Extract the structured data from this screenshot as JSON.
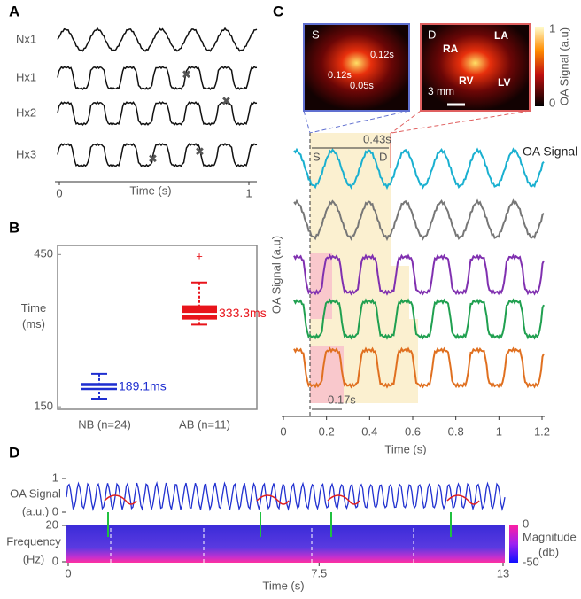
{
  "panels": [
    {
      "label": "A",
      "rows": [
        "Nx1",
        "Hx1",
        "Hx2",
        "Hx3"
      ],
      "xlabel": "Time (s)",
      "xlim": [
        0,
        1
      ],
      "xticks": [
        0,
        1
      ]
    },
    {
      "label": "B",
      "chart_data": {
        "type": "box",
        "ylabel": "Time (ms)",
        "categories": [
          "NB (n=24)",
          "AB (n=11)"
        ],
        "colors": [
          "#1f2fd0",
          "#e8141b"
        ],
        "ylim": [
          145,
          468
        ],
        "yticks": [
          150,
          450
        ],
        "min": [
          166,
          312
        ],
        "q1": [
          183,
          322
        ],
        "median": [
          189.1,
          333.3
        ],
        "q3": [
          197,
          350
        ],
        "max": [
          215,
          395
        ],
        "outliers": [
          [],
          [
            445
          ]
        ],
        "value_labels": [
          "189.1ms",
          "333.3ms"
        ]
      }
    },
    {
      "label": "C",
      "images": [
        {
          "label": "S",
          "notes": [
            "0.12s",
            "0.12s",
            "0.05s"
          ]
        },
        {
          "label": "D",
          "notes": [
            "RA",
            "LA",
            "RV",
            "LV",
            "3 mm"
          ]
        }
      ],
      "colorbar": {
        "title": "OA Signal (a.u)",
        "ticks": [
          1,
          0
        ]
      },
      "annotations": [
        "0.43s",
        "S",
        "D",
        "OA Signal",
        "0.17s"
      ],
      "ylabel": "OA Signal (a.u)",
      "xlabel": "Time (s)",
      "xlim": [
        -0.05,
        1.2
      ],
      "xticks": [
        0,
        0.2,
        0.4,
        0.6,
        0.8,
        1,
        1.2
      ]
    },
    {
      "label": "D",
      "top_ylabel": [
        "OA Signal",
        "(a.u.)"
      ],
      "top_yticks": [
        1,
        0
      ],
      "top_ylim": [
        0,
        1
      ],
      "bottom_ylabel": [
        "Frequency",
        "(Hz)"
      ],
      "bottom_yticks": [
        20,
        0
      ],
      "bottom_ylim": [
        0,
        20
      ],
      "colorbar": {
        "title": [
          "Magnitude",
          "(db)"
        ],
        "ticks": [
          0,
          -50
        ],
        "lim": [
          -50,
          0
        ]
      },
      "xlabel": "Time (s)",
      "xlim": [
        0,
        13
      ],
      "xticks": [
        0,
        7.5,
        13
      ]
    }
  ]
}
